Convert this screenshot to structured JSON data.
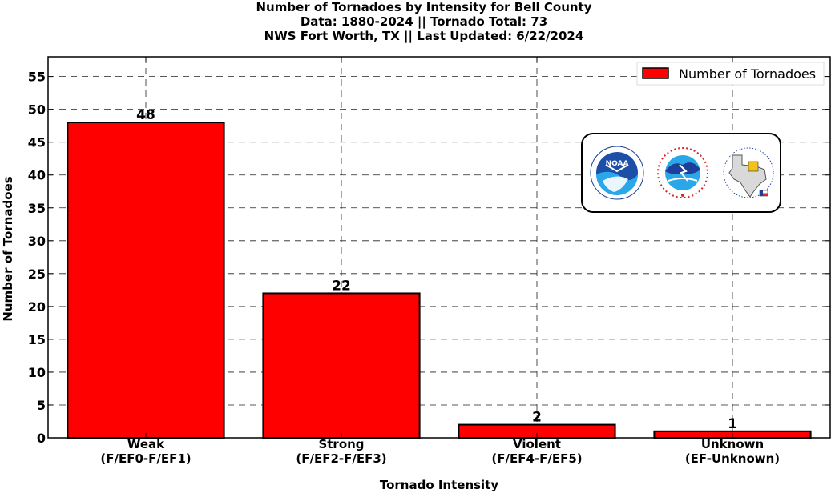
{
  "chart_data": {
    "type": "bar",
    "title_lines": [
      "Number of Tornadoes by Intensity for Bell County",
      "Data: 1880-2024 || Tornado Total: 73",
      "NWS Fort Worth, TX || Last Updated: 6/22/2024"
    ],
    "xlabel": "Tornado Intensity",
    "ylabel": "Number of Tornadoes",
    "categories": [
      [
        "Weak",
        "(F/EF0-F/EF1)"
      ],
      [
        "Strong",
        "(F/EF2-F/EF3)"
      ],
      [
        "Violent",
        "(F/EF4-F/EF5)"
      ],
      [
        "Unknown",
        "(EF-Unknown)"
      ]
    ],
    "series": [
      {
        "name": "Number of Tornadoes",
        "values": [
          48,
          22,
          2,
          1
        ],
        "color": "#ff0000"
      }
    ],
    "data_labels": [
      "48",
      "22",
      "2",
      "1"
    ],
    "ylim": [
      0,
      58
    ],
    "yticks": [
      0,
      5,
      10,
      15,
      20,
      25,
      30,
      35,
      40,
      45,
      50,
      55
    ],
    "grid": true,
    "legend": {
      "placement": "top-right",
      "label": "Number of Tornadoes"
    },
    "logos": [
      "noaa-logo",
      "national-weather-service-logo",
      "fort-worth-texas-logo"
    ]
  }
}
